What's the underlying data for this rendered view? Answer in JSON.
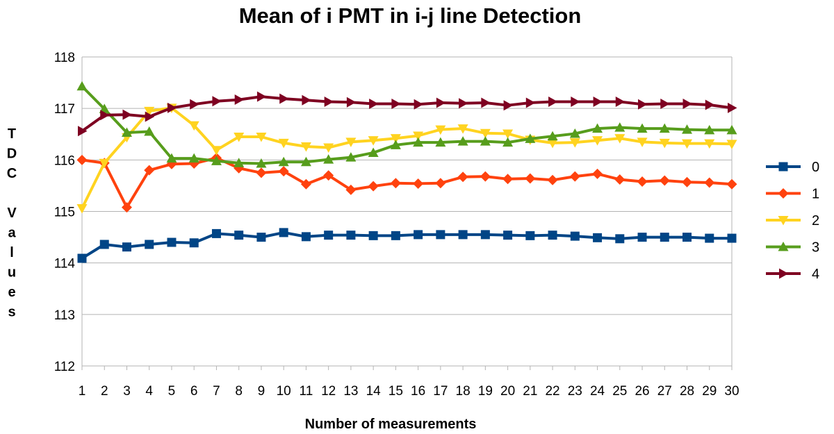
{
  "chart_data": {
    "type": "line",
    "title": "Mean of i PMT in i-j line Detection",
    "xlabel": "Number of measurements",
    "ylabel": "T D C Values",
    "ylabel_lines": [
      "T",
      "D",
      "C",
      "",
      "V",
      "a",
      "l",
      "u",
      "e",
      "s"
    ],
    "x": [
      1,
      2,
      3,
      4,
      5,
      6,
      7,
      8,
      9,
      10,
      11,
      12,
      13,
      14,
      15,
      16,
      17,
      18,
      19,
      20,
      21,
      22,
      23,
      24,
      25,
      26,
      27,
      28,
      29,
      30
    ],
    "ylim": [
      112,
      118
    ],
    "yticks": [
      112,
      113,
      114,
      115,
      116,
      117,
      118
    ],
    "grid": "horizontal",
    "legend_position": "right",
    "series": [
      {
        "name": "0",
        "color": "#004586",
        "marker": "square",
        "values": [
          114.09,
          114.36,
          114.31,
          114.36,
          114.4,
          114.39,
          114.57,
          114.54,
          114.5,
          114.59,
          114.51,
          114.54,
          114.54,
          114.53,
          114.53,
          114.55,
          114.55,
          114.55,
          114.55,
          114.54,
          114.53,
          114.54,
          114.52,
          114.49,
          114.47,
          114.5,
          114.5,
          114.5,
          114.48,
          114.48
        ]
      },
      {
        "name": "1",
        "color": "#ff420e",
        "marker": "diamond",
        "values": [
          116.0,
          115.94,
          115.08,
          115.8,
          115.92,
          115.93,
          116.04,
          115.84,
          115.75,
          115.78,
          115.53,
          115.7,
          115.42,
          115.49,
          115.55,
          115.54,
          115.55,
          115.67,
          115.68,
          115.63,
          115.64,
          115.61,
          115.68,
          115.73,
          115.62,
          115.58,
          115.6,
          115.57,
          115.56,
          115.53
        ]
      },
      {
        "name": "2",
        "color": "#ffd320",
        "marker": "triangle-down",
        "values": [
          115.06,
          115.94,
          116.44,
          116.95,
          117.01,
          116.67,
          116.19,
          116.45,
          116.45,
          116.33,
          116.26,
          116.24,
          116.35,
          116.38,
          116.42,
          116.47,
          116.59,
          116.61,
          116.52,
          116.51,
          116.39,
          116.33,
          116.34,
          116.38,
          116.42,
          116.35,
          116.33,
          116.32,
          116.32,
          116.31
        ]
      },
      {
        "name": "3",
        "color": "#579d1c",
        "marker": "triangle-up",
        "values": [
          117.43,
          116.99,
          116.53,
          116.55,
          116.03,
          116.03,
          115.98,
          115.94,
          115.93,
          115.96,
          115.96,
          116.01,
          116.05,
          116.14,
          116.29,
          116.34,
          116.34,
          116.36,
          116.36,
          116.34,
          116.41,
          116.46,
          116.51,
          116.61,
          116.63,
          116.61,
          116.61,
          116.59,
          116.58,
          116.58
        ]
      },
      {
        "name": "4",
        "color": "#7e0021",
        "marker": "triangle-right",
        "values": [
          116.56,
          116.87,
          116.88,
          116.84,
          117.01,
          117.08,
          117.14,
          117.17,
          117.23,
          117.19,
          117.16,
          117.13,
          117.12,
          117.09,
          117.09,
          117.08,
          117.11,
          117.1,
          117.11,
          117.06,
          117.11,
          117.13,
          117.13,
          117.13,
          117.13,
          117.08,
          117.09,
          117.09,
          117.07,
          117.01
        ]
      }
    ]
  }
}
